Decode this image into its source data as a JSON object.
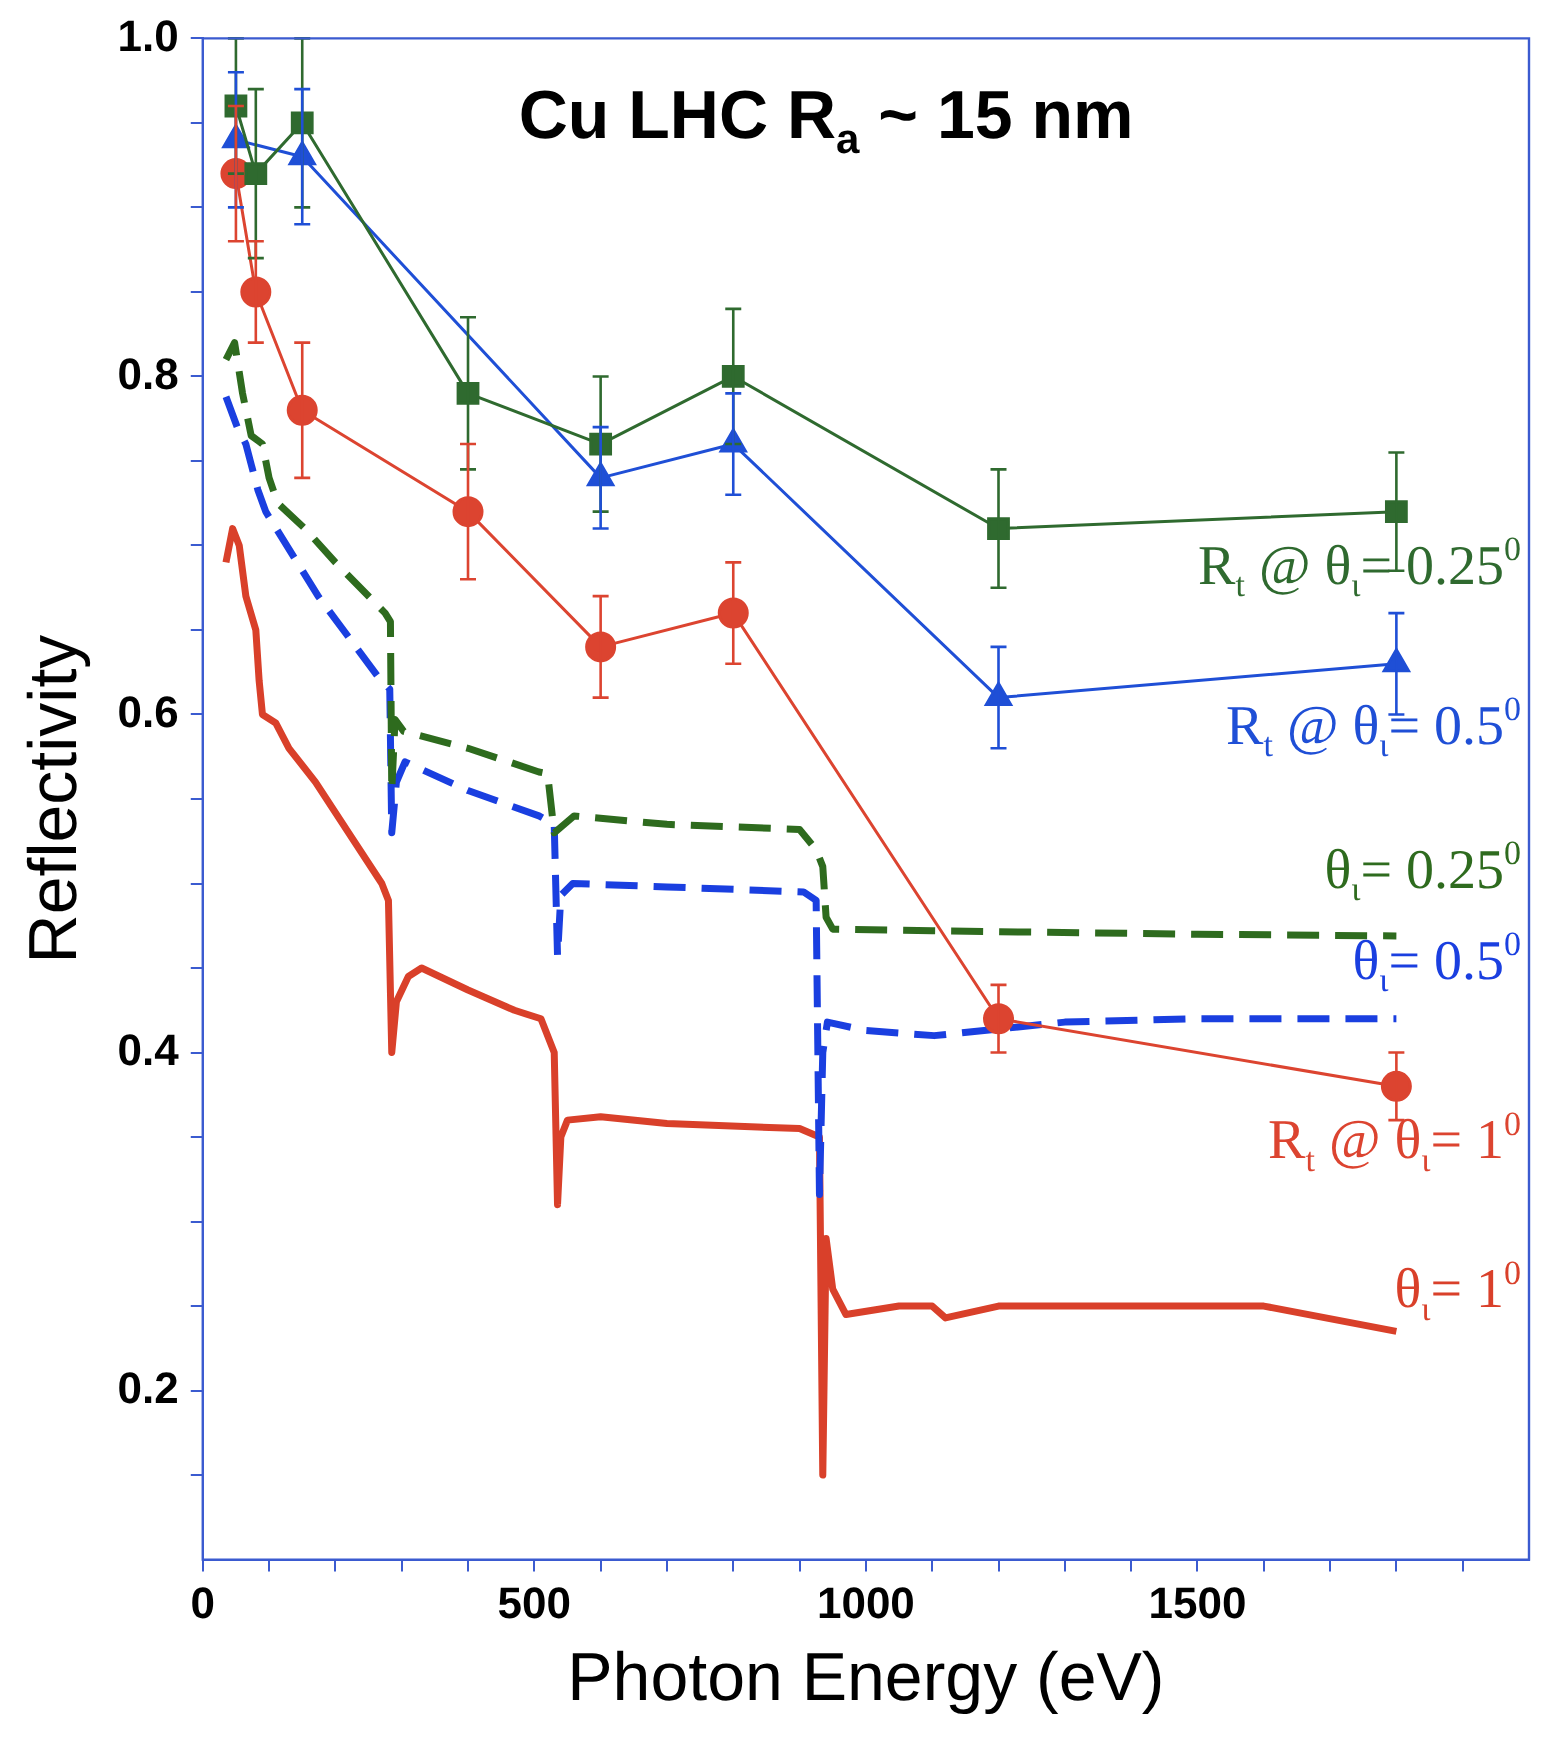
{
  "chart_data": {
    "type": "line",
    "title": "Cu LHC R$_{a}$ ~ 15 nm",
    "xlabel": "Photon Energy (eV)",
    "ylabel": "Reflectivity",
    "xlim": [
      0,
      2000
    ],
    "ylim": [
      0.1,
      1.0
    ],
    "xticks": [
      0,
      {
        "value": 100,
        "label": null
      },
      {
        "value": 200,
        "label": null
      },
      {
        "value": 300,
        "label": null
      },
      {
        "value": 400,
        "label": null
      },
      500,
      {
        "value": 600,
        "label": null
      },
      {
        "value": 700,
        "label": null
      },
      {
        "value": 800,
        "label": null
      },
      {
        "value": 900,
        "label": null
      },
      1000,
      {
        "value": 1100,
        "label": null
      },
      {
        "value": 1200,
        "label": null
      },
      {
        "value": 1300,
        "label": null
      },
      {
        "value": 1400,
        "label": null
      },
      1500,
      {
        "value": 1600,
        "label": null
      },
      {
        "value": 1700,
        "label": null
      },
      {
        "value": 1800,
        "label": null
      },
      {
        "value": 1900,
        "label": null
      }
    ],
    "yticks": [
      {
        "value": 0.15,
        "label": null
      },
      0.2,
      {
        "value": 0.25,
        "label": null
      },
      {
        "value": 0.3,
        "label": null
      },
      {
        "value": 0.35,
        "label": null
      },
      0.4,
      {
        "value": 0.45,
        "label": null
      },
      {
        "value": 0.5,
        "label": null
      },
      {
        "value": 0.55,
        "label": null
      },
      0.6,
      {
        "value": 0.65,
        "label": null
      },
      {
        "value": 0.7,
        "label": null
      },
      {
        "value": 0.75,
        "label": null
      },
      0.8,
      {
        "value": 0.85,
        "label": null
      },
      {
        "value": 0.9,
        "label": null
      },
      {
        "value": 0.95,
        "label": null
      },
      {
        "value": 1.0,
        "label": "1.0"
      }
    ],
    "grid": false,
    "legend": false,
    "series": [
      {
        "name": "R$_{t}$ @ θ$_{ι}$= 0.25$^{0}$",
        "color": "#2f6a2f",
        "marker": "square",
        "line_style": "solid",
        "x": [
          50,
          80,
          150,
          400,
          600,
          800,
          1200,
          1800
        ],
        "values": [
          0.96,
          0.92,
          0.95,
          0.79,
          0.76,
          0.8,
          0.71,
          0.72
        ],
        "errors": [
          0.04,
          0.05,
          0.05,
          0.045,
          0.04,
          0.04,
          0.035,
          0.035
        ]
      },
      {
        "name": "R$_{t}$ @ θ$_{ι}$= 0.5$^{0}$",
        "color": "#1f4fd6",
        "marker": "triangle",
        "line_style": "solid",
        "x": [
          50,
          80,
          150,
          400,
          600,
          800,
          1200,
          1800
        ],
        "values": [
          0.94,
          null,
          0.93,
          null,
          0.74,
          0.76,
          0.61,
          0.63
        ],
        "errors": [
          0.04,
          null,
          0.04,
          null,
          0.03,
          0.03,
          0.03,
          0.03
        ]
      },
      {
        "name": "R$_{t}$ @ θ$_{ι}$= 1$^{0}$",
        "color": "#dc4430",
        "marker": "circle",
        "line_style": "solid",
        "x": [
          50,
          80,
          150,
          400,
          600,
          800,
          1200,
          1800
        ],
        "values": [
          0.92,
          0.85,
          0.78,
          0.72,
          0.64,
          0.66,
          0.42,
          0.38
        ],
        "errors": [
          0.04,
          0.03,
          0.04,
          0.04,
          0.03,
          0.03,
          0.02,
          0.02
        ]
      },
      {
        "name": "θ$_{ι}$= 0.25$^{0}$",
        "color": "#2e6b1e",
        "marker": "none",
        "line_style": "dashed",
        "x": [
          35,
          48,
          60,
          73,
          90,
          100,
          113,
          154,
          200,
          275,
          283,
          285,
          290,
          303,
          400,
          507,
          520,
          530,
          545,
          560,
          700,
          900,
          925,
          935,
          940,
          950,
          1100,
          1500,
          1800
        ],
        "values": [
          0.81,
          0.82,
          0.79,
          0.765,
          0.76,
          0.74,
          0.725,
          0.71,
          0.69,
          0.66,
          0.655,
          0.555,
          0.597,
          0.59,
          0.58,
          0.566,
          0.565,
          0.53,
          0.535,
          0.54,
          0.535,
          0.532,
          0.52,
          0.51,
          0.48,
          0.473,
          0.472,
          0.47,
          0.469
        ]
      },
      {
        "name": "θ$_{ι}$= 0.5$^{0}$",
        "color": "#1a3fe0",
        "marker": "none",
        "line_style": "dashed",
        "x": [
          35,
          52,
          65,
          83,
          95,
          174,
          265,
          282,
          285,
          292,
          305,
          400,
          507,
          530,
          535,
          540,
          558,
          700,
          906,
          925,
          930,
          935,
          942,
          1000,
          1103,
          1300,
          1500,
          1800
        ],
        "values": [
          0.788,
          0.77,
          0.76,
          0.733,
          0.72,
          0.67,
          0.622,
          0.615,
          0.53,
          0.56,
          0.572,
          0.555,
          0.54,
          0.535,
          0.457,
          0.493,
          0.5,
          0.498,
          0.495,
          0.49,
          0.316,
          0.4,
          0.418,
          0.413,
          0.41,
          0.418,
          0.42,
          0.42
        ]
      },
      {
        "name": "θ$_{ι}$= 1$^{0}$",
        "color": "#d9402a",
        "marker": "none",
        "line_style": "solid",
        "x": [
          35,
          45,
          55,
          65,
          80,
          85,
          90,
          110,
          130,
          170,
          220,
          270,
          280,
          285,
          292,
          310,
          330,
          400,
          470,
          510,
          530,
          535,
          540,
          550,
          600,
          700,
          900,
          930,
          935,
          940,
          950,
          970,
          1050,
          1100,
          1120,
          1200,
          1600,
          1800
        ],
        "values": [
          0.69,
          0.71,
          0.7,
          0.67,
          0.65,
          0.62,
          0.6,
          0.595,
          0.58,
          0.56,
          0.53,
          0.5,
          0.49,
          0.4,
          0.43,
          0.445,
          0.45,
          0.437,
          0.425,
          0.42,
          0.4,
          0.31,
          0.35,
          0.36,
          0.362,
          0.358,
          0.355,
          0.35,
          0.15,
          0.29,
          0.26,
          0.245,
          0.25,
          0.25,
          0.243,
          0.25,
          0.25,
          0.235
        ]
      }
    ]
  }
}
